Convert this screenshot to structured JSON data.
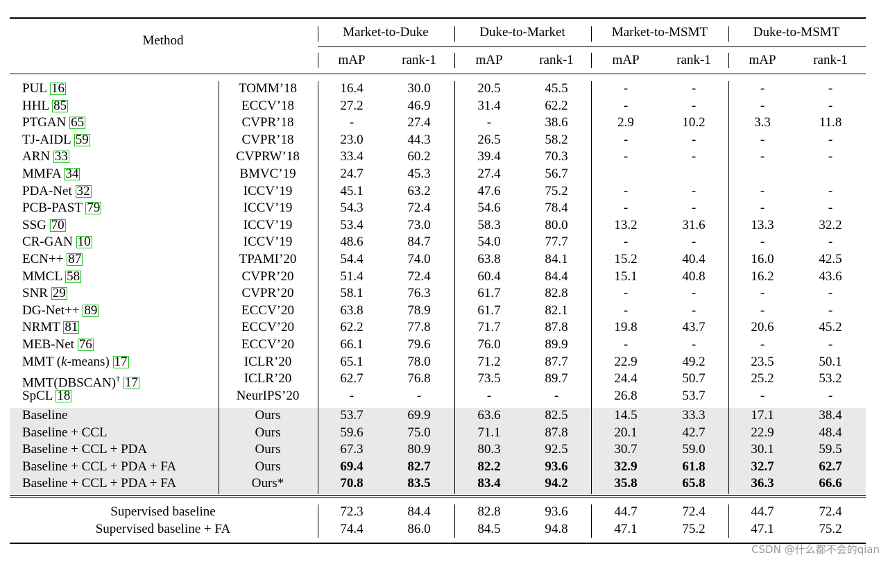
{
  "header": {
    "method": "Method",
    "groups": [
      "Market-to-Duke",
      "Duke-to-Market",
      "Market-to-MSMT",
      "Duke-to-MSMT"
    ],
    "metrics": [
      "mAP",
      "rank-1",
      "mAP",
      "rank-1",
      "mAP",
      "rank-1",
      "mAP",
      "rank-1"
    ]
  },
  "rows": [
    {
      "name": "PUL",
      "ref": "16",
      "venue": "TOMM’18",
      "v": [
        "16.4",
        "30.0",
        "20.5",
        "45.5",
        "-",
        "-",
        "-",
        "-"
      ]
    },
    {
      "name": "HHL",
      "ref": "85",
      "venue": "ECCV’18",
      "v": [
        "27.2",
        "46.9",
        "31.4",
        "62.2",
        "-",
        "-",
        "-",
        "-"
      ]
    },
    {
      "name": "PTGAN",
      "ref": "65",
      "venue": "CVPR’18",
      "v": [
        "-",
        "27.4",
        "-",
        "38.6",
        "2.9",
        "10.2",
        "3.3",
        "11.8"
      ]
    },
    {
      "name": "TJ-AIDL",
      "ref": "59",
      "venue": "CVPR’18",
      "v": [
        "23.0",
        "44.3",
        "26.5",
        "58.2",
        "-",
        "-",
        "-",
        "-"
      ]
    },
    {
      "name": "ARN",
      "ref": "33",
      "venue": "CVPRW’18",
      "v": [
        "33.4",
        "60.2",
        "39.4",
        "70.3",
        "-",
        "-",
        "-",
        "-"
      ]
    },
    {
      "name": "MMFA",
      "ref": "34",
      "venue": "BMVC’19",
      "v": [
        "24.7",
        "45.3",
        "27.4",
        "56.7",
        "",
        "",
        "",
        ""
      ]
    },
    {
      "name": "PDA-Net",
      "ref": "32",
      "venue": "ICCV’19",
      "v": [
        "45.1",
        "63.2",
        "47.6",
        "75.2",
        "-",
        "-",
        "-",
        "-"
      ]
    },
    {
      "name": "PCB-PAST",
      "ref": "79",
      "venue": "ICCV’19",
      "v": [
        "54.3",
        "72.4",
        "54.6",
        "78.4",
        "-",
        "-",
        "-",
        "-"
      ]
    },
    {
      "name": "SSG",
      "ref": "70",
      "venue": "ICCV’19",
      "v": [
        "53.4",
        "73.0",
        "58.3",
        "80.0",
        "13.2",
        "31.6",
        "13.3",
        "32.2"
      ]
    },
    {
      "name": "CR-GAN",
      "ref": "10",
      "venue": "ICCV’19",
      "v": [
        "48.6",
        "84.7",
        "54.0",
        "77.7",
        "-",
        "-",
        "-",
        "-"
      ]
    },
    {
      "name": "ECN++",
      "ref": "87",
      "venue": "TPAMI’20",
      "v": [
        "54.4",
        "74.0",
        "63.8",
        "84.1",
        "15.2",
        "40.4",
        "16.0",
        "42.5"
      ]
    },
    {
      "name": "MMCL",
      "ref": "58",
      "venue": "CVPR’20",
      "v": [
        "51.4",
        "72.4",
        "60.4",
        "84.4",
        "15.1",
        "40.8",
        "16.2",
        "43.6"
      ]
    },
    {
      "name": "SNR",
      "ref": "29",
      "venue": "CVPR’20",
      "v": [
        "58.1",
        "76.3",
        "61.7",
        "82.8",
        "-",
        "-",
        "-",
        "-"
      ]
    },
    {
      "name": "DG-Net++",
      "ref": "89",
      "venue": "ECCV’20",
      "v": [
        "63.8",
        "78.9",
        "61.7",
        "82.1",
        "-",
        "-",
        "-",
        "-"
      ]
    },
    {
      "name": "NRMT",
      "ref": "81",
      "venue": "ECCV’20",
      "v": [
        "62.2",
        "77.8",
        "71.7",
        "87.8",
        "19.8",
        "43.7",
        "20.6",
        "45.2"
      ]
    },
    {
      "name": "MEB-Net",
      "ref": "76",
      "venue": "ECCV’20",
      "v": [
        "66.1",
        "79.6",
        "76.0",
        "89.9",
        "-",
        "-",
        "-",
        "-"
      ]
    },
    {
      "name": "MMT (k-means)",
      "ref": "17",
      "venue": "ICLR’20",
      "v": [
        "65.1",
        "78.0",
        "71.2",
        "87.7",
        "22.9",
        "49.2",
        "23.5",
        "50.1"
      ]
    },
    {
      "name": "MMT(DBSCAN)†",
      "ref": "17",
      "venue": "ICLR’20",
      "v": [
        "62.7",
        "76.8",
        "73.5",
        "89.7",
        "24.4",
        "50.7",
        "25.2",
        "53.2"
      ]
    },
    {
      "name": "SpCL",
      "ref": "18",
      "venue": "NeurIPS’20",
      "v": [
        "-",
        "-",
        "-",
        "-",
        "26.8",
        "53.7",
        "-",
        "-"
      ]
    }
  ],
  "ours_rows": [
    {
      "name": "Baseline",
      "venue": "Ours",
      "v": [
        "53.7",
        "69.9",
        "63.6",
        "82.5",
        "14.5",
        "33.3",
        "17.1",
        "38.4"
      ],
      "bold": false
    },
    {
      "name": "Baseline + CCL",
      "venue": "Ours",
      "v": [
        "59.6",
        "75.0",
        "71.1",
        "87.8",
        "20.1",
        "42.7",
        "22.9",
        "48.4"
      ],
      "bold": false
    },
    {
      "name": "Baseline + CCL + PDA",
      "venue": "Ours",
      "v": [
        "67.3",
        "80.9",
        "80.3",
        "92.5",
        "30.7",
        "59.0",
        "30.1",
        "59.5"
      ],
      "bold": false
    },
    {
      "name": "Baseline + CCL + PDA + FA",
      "venue": "Ours",
      "v": [
        "69.4",
        "82.7",
        "82.2",
        "93.6",
        "32.9",
        "61.8",
        "32.7",
        "62.7"
      ],
      "bold": true
    },
    {
      "name": "Baseline + CCL + PDA + FA",
      "venue": "Ours*",
      "v": [
        "70.8",
        "83.5",
        "83.4",
        "94.2",
        "35.8",
        "65.8",
        "36.3",
        "66.6"
      ],
      "bold": true
    }
  ],
  "supervised_rows": [
    {
      "name": "Supervised baseline",
      "v": [
        "72.3",
        "84.4",
        "82.8",
        "93.6",
        "44.7",
        "72.4",
        "44.7",
        "72.4"
      ]
    },
    {
      "name": "Supervised baseline + FA",
      "v": [
        "74.4",
        "86.0",
        "84.5",
        "94.8",
        "47.1",
        "75.2",
        "47.1",
        "75.2"
      ]
    }
  ],
  "watermark": "CSDN @什么都不会的qian"
}
